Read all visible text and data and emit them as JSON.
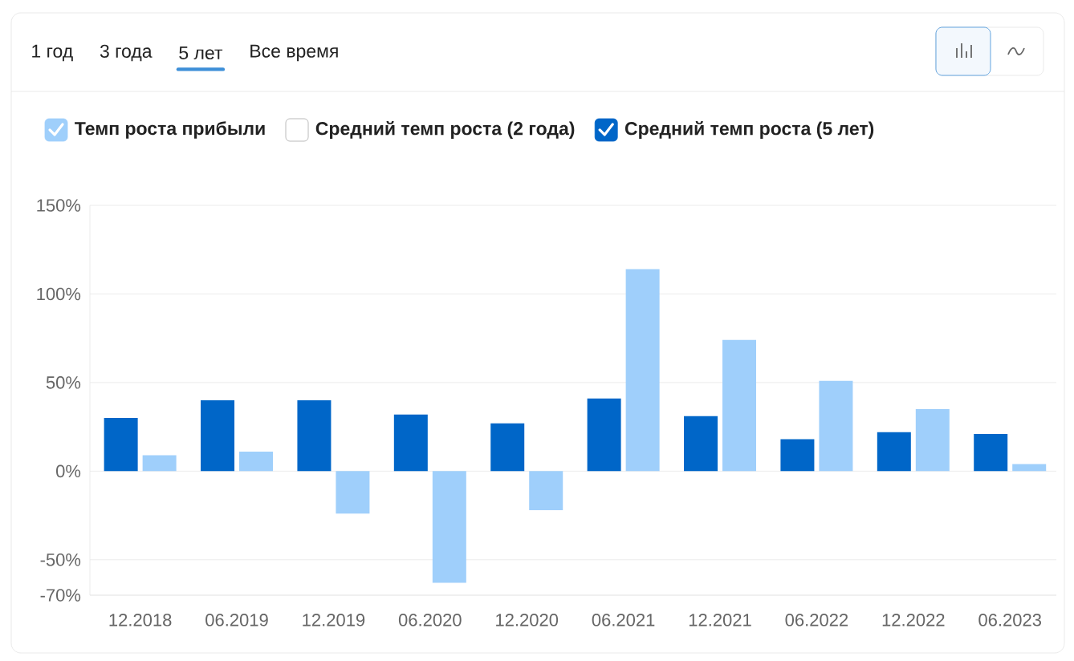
{
  "chart_data": {
    "type": "bar",
    "categories": [
      "12.2018",
      "06.2019",
      "12.2019",
      "06.2020",
      "12.2020",
      "06.2021",
      "12.2021",
      "06.2022",
      "12.2022",
      "06.2023"
    ],
    "series": [
      {
        "name": "Темп роста прибыли",
        "color": "#9fcffb",
        "values": [
          9,
          11,
          -24,
          -63,
          -22,
          114,
          74,
          51,
          35,
          4
        ]
      },
      {
        "name": "Средний темп роста (2 года)",
        "color": "#ffffff",
        "values": [
          null,
          null,
          null,
          null,
          null,
          null,
          null,
          null,
          null,
          null
        ]
      },
      {
        "name": "Средний темп роста (5 лет)",
        "color": "#0066c8",
        "values": [
          30,
          40,
          40,
          32,
          27,
          41,
          31,
          18,
          22,
          21
        ]
      }
    ],
    "ylim": [
      -70,
      150
    ],
    "yticks": [
      {
        "value": -70,
        "label": "-70%"
      },
      {
        "value": -50,
        "label": "-50%"
      },
      {
        "value": 0,
        "label": "0%"
      },
      {
        "value": 50,
        "label": "50%"
      },
      {
        "value": 100,
        "label": "100%"
      },
      {
        "value": 150,
        "label": "150%"
      }
    ],
    "grid": "y",
    "legend": "top",
    "annotations": [
      "1 год",
      "3 года",
      "5 лет",
      "Все время"
    ]
  }
}
